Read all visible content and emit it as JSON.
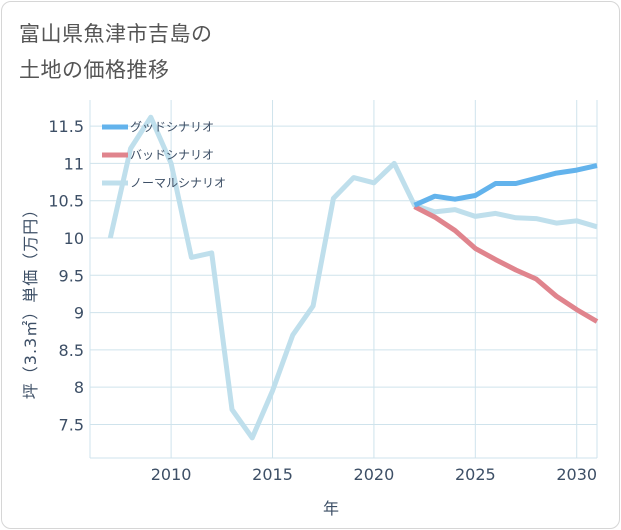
{
  "title_lines": [
    "富山県魚津市吉島の",
    "土地の価格推移"
  ],
  "colors": {
    "good": "#63b3ec",
    "bad": "#e0848d",
    "normal": "#bfdfec",
    "grid": "#cfe3ec",
    "axis": "#3d4f66"
  },
  "chart_data": {
    "type": "line",
    "title": "富山県魚津市吉島の土地の価格推移",
    "xlabel": "年",
    "ylabel": "坪（3.3㎡）単価（万円）",
    "xlim": [
      2006,
      2031
    ],
    "ylim": [
      7.05,
      11.85
    ],
    "xticks": [
      2010,
      2015,
      2020,
      2025,
      2030
    ],
    "xtick_labels": [
      "2010",
      "2015",
      "2020",
      "2025",
      "2030"
    ],
    "yticks": [
      7.5,
      8,
      8.5,
      9,
      9.5,
      10,
      10.5,
      11,
      11.5
    ],
    "ytick_labels": [
      "7.5",
      "8",
      "8.5",
      "9",
      "9.5",
      "10",
      "10.5",
      "11",
      "11.5"
    ],
    "grid": true,
    "legend_position": "top-left",
    "series": [
      {
        "name": "グッドシナリオ",
        "key": "good",
        "x": [
          2022,
          2023,
          2024,
          2025,
          2026,
          2027,
          2028,
          2029,
          2030,
          2031
        ],
        "values": [
          10.44,
          10.56,
          10.52,
          10.57,
          10.73,
          10.73,
          10.8,
          10.87,
          10.91,
          10.97
        ]
      },
      {
        "name": "バッドシナリオ",
        "key": "bad",
        "x": [
          2022,
          2023,
          2024,
          2025,
          2026,
          2027,
          2028,
          2029,
          2030,
          2031
        ],
        "values": [
          10.42,
          10.28,
          10.1,
          9.86,
          9.71,
          9.57,
          9.45,
          9.22,
          9.04,
          8.88
        ]
      },
      {
        "name": "ノーマルシナリオ",
        "key": "normal",
        "x": [
          2007,
          2008,
          2009,
          2010,
          2011,
          2012,
          2013,
          2014,
          2015,
          2016,
          2017,
          2018,
          2019,
          2020,
          2021,
          2022,
          2023,
          2024,
          2025,
          2026,
          2027,
          2028,
          2029,
          2030,
          2031
        ],
        "values": [
          10.0,
          11.2,
          11.62,
          11.0,
          9.74,
          9.8,
          7.7,
          7.32,
          7.95,
          8.7,
          9.09,
          10.53,
          10.81,
          10.74,
          11.0,
          10.44,
          10.35,
          10.38,
          10.29,
          10.33,
          10.27,
          10.26,
          10.2,
          10.23,
          10.15
        ]
      }
    ]
  }
}
